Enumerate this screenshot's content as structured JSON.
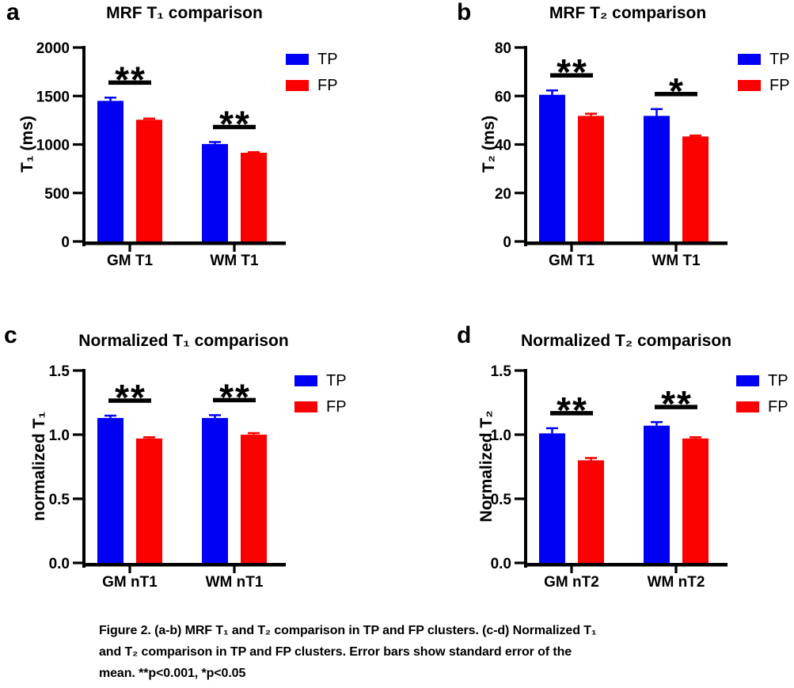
{
  "figure": {
    "caption_lines": [
      "Figure 2. (a-b) MRF T₁ and T₂ comparison in TP and FP clusters. (c-d) Normalized T₁",
      "and T₂ comparison in TP and FP clusters. Error bars show standard error of the",
      "mean. **p<0.001, *p<0.05"
    ]
  },
  "colors": {
    "tp_blue": "#0000F5",
    "fp_red": "#FA0000",
    "axis_black": "#000000"
  },
  "chart_data": [
    {
      "panel": "a",
      "type": "bar",
      "title": "MRF T₁ comparison",
      "ylabel": "T₁ (ms)",
      "categories": [
        "GM T1",
        "WM T1"
      ],
      "series": [
        {
          "name": "TP",
          "color": "#0000F5",
          "values": [
            1450,
            1005
          ],
          "errors": [
            33,
            20
          ]
        },
        {
          "name": "FP",
          "color": "#FA0000",
          "values": [
            1255,
            915
          ],
          "errors": [
            12,
            6
          ]
        }
      ],
      "ylim": [
        0,
        2000
      ],
      "yticks": [
        0,
        500,
        1000,
        1500,
        2000
      ],
      "ytick_labels": [
        "0",
        "500",
        "1000",
        "1500",
        "2000"
      ],
      "significance": [
        "**",
        "**"
      ],
      "grid": false,
      "legend_position": "top-right"
    },
    {
      "panel": "b",
      "type": "bar",
      "title": "MRF T₂ comparison",
      "ylabel": "T₂ (ms)",
      "categories": [
        "GM T1",
        "WM T1"
      ],
      "series": [
        {
          "name": "TP",
          "color": "#0000F5",
          "values": [
            60.5,
            51.8
          ],
          "errors": [
            1.8,
            2.8
          ]
        },
        {
          "name": "FP",
          "color": "#FA0000",
          "values": [
            51.8,
            43.3
          ],
          "errors": [
            0.9,
            0.4
          ]
        }
      ],
      "ylim": [
        0,
        80
      ],
      "yticks": [
        0,
        20,
        40,
        60,
        80
      ],
      "ytick_labels": [
        "0",
        "20",
        "40",
        "60",
        "80"
      ],
      "significance": [
        "**",
        "*"
      ],
      "grid": false,
      "legend_position": "top-right"
    },
    {
      "panel": "c",
      "type": "bar",
      "title": "Normalized T₁ comparison",
      "ylabel": "normalized T₁",
      "categories": [
        "GM nT1",
        "WM nT1"
      ],
      "series": [
        {
          "name": "TP",
          "color": "#0000F5",
          "values": [
            1.13,
            1.13
          ],
          "errors": [
            0.018,
            0.022
          ]
        },
        {
          "name": "FP",
          "color": "#FA0000",
          "values": [
            0.97,
            1.0
          ],
          "errors": [
            0.01,
            0.012
          ]
        }
      ],
      "ylim": [
        0,
        1.5
      ],
      "yticks": [
        0,
        0.5,
        1.0,
        1.5
      ],
      "ytick_labels": [
        "0.0",
        "0.5",
        "1.0",
        "1.5"
      ],
      "significance": [
        "**",
        "**"
      ],
      "grid": false,
      "legend_position": "top-right"
    },
    {
      "panel": "d",
      "type": "bar",
      "title": "Normalized T₂ comparison",
      "ylabel": "Normalized T₂",
      "categories": [
        "GM nT2",
        "WM nT2"
      ],
      "series": [
        {
          "name": "TP",
          "color": "#0000F5",
          "values": [
            1.01,
            1.07
          ],
          "errors": [
            0.04,
            0.028
          ]
        },
        {
          "name": "FP",
          "color": "#FA0000",
          "values": [
            0.8,
            0.97
          ],
          "errors": [
            0.018,
            0.01
          ]
        }
      ],
      "ylim": [
        0,
        1.5
      ],
      "yticks": [
        0,
        0.5,
        1.0,
        1.5
      ],
      "ytick_labels": [
        "0.0",
        "0.5",
        "1.0",
        "1.5"
      ],
      "significance": [
        "**",
        "**"
      ],
      "grid": false,
      "legend_position": "top-right"
    }
  ]
}
